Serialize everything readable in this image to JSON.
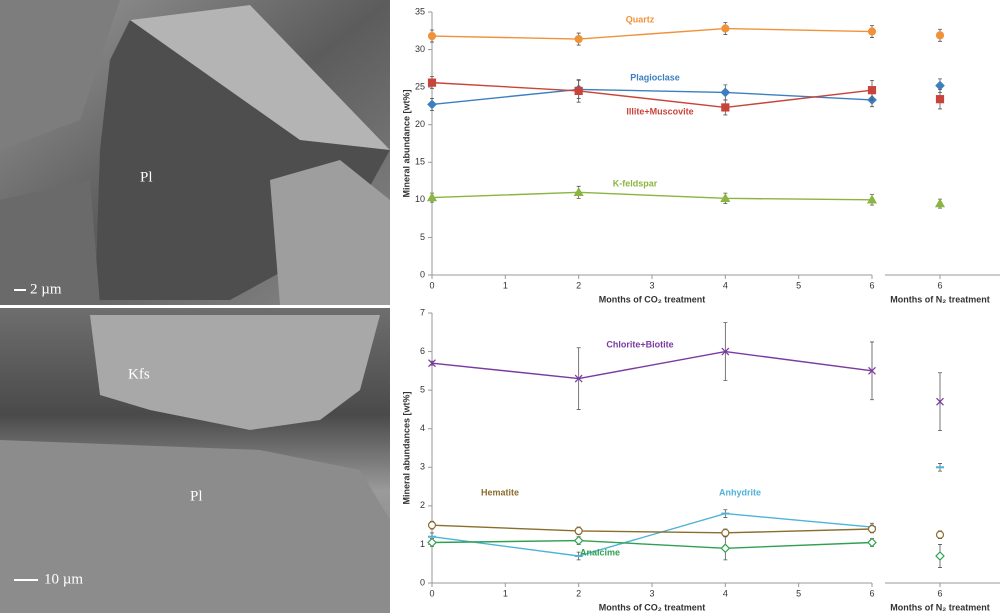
{
  "images": [
    {
      "labels": [
        "Pl"
      ],
      "scale": "2 µm"
    },
    {
      "labels": [
        "Kfs",
        "Pl"
      ],
      "scale": "10 µm"
    }
  ],
  "chart_data": [
    {
      "type": "line",
      "ylabel": "Mineral abundance [wt%]",
      "xlabel": "Months of CO₂ treatment",
      "x": [
        0,
        2,
        4,
        6
      ],
      "xlim": [
        0,
        6
      ],
      "xticks": [
        0,
        1,
        2,
        3,
        4,
        5,
        6
      ],
      "ylim": [
        0,
        35
      ],
      "yticks": [
        0,
        5,
        10,
        15,
        20,
        25,
        30,
        35
      ],
      "side_panel": {
        "xlabel": "Months of N₂ treatment",
        "xticks": [
          6
        ]
      },
      "series": [
        {
          "name": "Quartz",
          "color": "#f0923a",
          "marker": "circle",
          "values": [
            31.8,
            31.4,
            32.8,
            32.4
          ],
          "errors": [
            0.8,
            0.8,
            0.8,
            0.8
          ],
          "n2_value": 31.9,
          "n2_error": 0.8
        },
        {
          "name": "Plagioclase",
          "color": "#3c7fc0",
          "marker": "diamond",
          "values": [
            22.7,
            24.7,
            24.3,
            23.3
          ],
          "errors": [
            0.8,
            1.2,
            1.0,
            0.9
          ],
          "n2_value": 25.2,
          "n2_error": 0.9
        },
        {
          "name": "Illite+Muscovite",
          "color": "#c8443a",
          "marker": "square",
          "values": [
            25.6,
            24.5,
            22.3,
            24.6
          ],
          "errors": [
            0.8,
            1.5,
            1.0,
            1.3
          ],
          "n2_value": 23.4,
          "n2_error": 1.3
        },
        {
          "name": "K-feldspar",
          "color": "#8ab53f",
          "marker": "triangle",
          "values": [
            10.3,
            11.0,
            10.2,
            10.0
          ],
          "errors": [
            0.6,
            0.8,
            0.7,
            0.7
          ],
          "n2_value": 9.5,
          "n2_error": 0.6
        }
      ]
    },
    {
      "type": "line",
      "ylabel": "Mineral abundances [wt%]",
      "xlabel": "Months of CO₂ treatment",
      "x": [
        0,
        2,
        4,
        6
      ],
      "xlim": [
        0,
        6
      ],
      "xticks": [
        0,
        1,
        2,
        3,
        4,
        5,
        6
      ],
      "ylim": [
        0,
        7
      ],
      "yticks": [
        0,
        1,
        2,
        3,
        4,
        5,
        6,
        7
      ],
      "side_panel": {
        "xlabel": "Months of N₂ treatment",
        "xticks": [
          6
        ]
      },
      "series": [
        {
          "name": "Chlorite+Biotite",
          "color": "#7a3aa0",
          "marker": "cross",
          "values": [
            5.7,
            5.3,
            6.0,
            5.5
          ],
          "errors": [
            0.05,
            0.8,
            0.75,
            0.75
          ],
          "n2_value": 4.7,
          "n2_error": 0.75
        },
        {
          "name": "Anhydrite",
          "color": "#4fb3d9",
          "marker": "dash",
          "values": [
            1.2,
            0.7,
            1.8,
            1.45
          ],
          "errors": [
            0.1,
            0.1,
            0.1,
            0.1
          ],
          "n2_value": 3.0,
          "n2_error": 0.1
        },
        {
          "name": "Hematite",
          "color": "#8b6d2e",
          "marker": "circle-open",
          "values": [
            1.5,
            1.35,
            1.3,
            1.4
          ],
          "errors": [
            0.1,
            0.1,
            0.1,
            0.1
          ],
          "n2_value": 1.25,
          "n2_error": 0.1
        },
        {
          "name": "Analcime",
          "color": "#2fa050",
          "marker": "diamond-open",
          "values": [
            1.05,
            1.1,
            0.9,
            1.05
          ],
          "errors": [
            0.1,
            0.1,
            0.3,
            0.1
          ],
          "n2_value": 0.7,
          "n2_error": 0.3
        }
      ]
    }
  ]
}
